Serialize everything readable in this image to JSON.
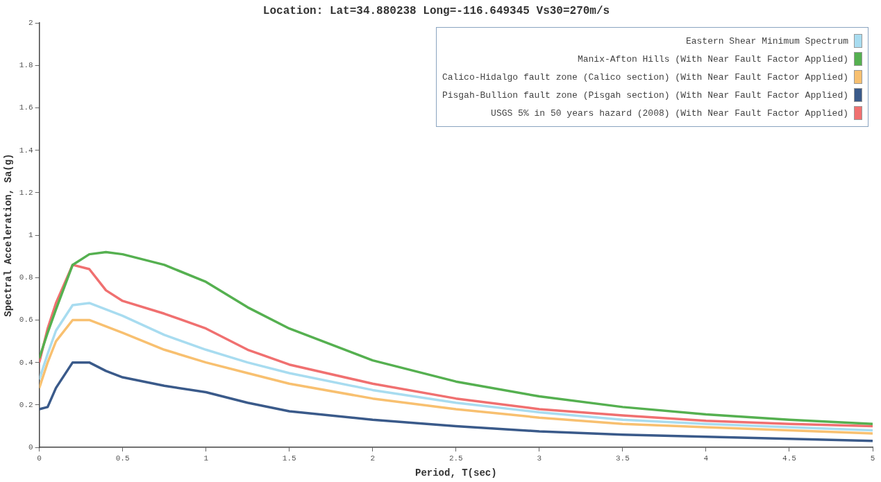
{
  "chart_data": {
    "type": "line",
    "title": "Location: Lat=34.880238 Long=-116.649345 Vs30=270m/s",
    "xlabel": "Period, T(sec)",
    "ylabel": "Spectral Acceleration, Sa(g)",
    "x": [
      0,
      0.05,
      0.1,
      0.2,
      0.3,
      0.4,
      0.5,
      0.75,
      1.0,
      1.25,
      1.5,
      2,
      2.5,
      3,
      3.5,
      4,
      4.5,
      5
    ],
    "series": [
      {
        "name": "Eastern Shear Minimum Spectrum",
        "color": "#a8dcf0",
        "values": [
          0.32,
          0.44,
          0.55,
          0.67,
          0.68,
          0.65,
          0.62,
          0.53,
          0.46,
          0.4,
          0.35,
          0.27,
          0.21,
          0.165,
          0.13,
          0.11,
          0.095,
          0.08
        ]
      },
      {
        "name": "Manix-Afton Hills (With Near Fault Factor Applied)",
        "color": "#55b050",
        "values": [
          0.42,
          0.54,
          0.65,
          0.86,
          0.91,
          0.92,
          0.91,
          0.86,
          0.78,
          0.66,
          0.56,
          0.41,
          0.31,
          0.24,
          0.19,
          0.155,
          0.13,
          0.11
        ]
      },
      {
        "name": "Calico-Hidalgo fault zone (Calico section) (With Near Fault Factor Applied)",
        "color": "#f8c070",
        "values": [
          0.28,
          0.4,
          0.5,
          0.6,
          0.6,
          0.57,
          0.54,
          0.46,
          0.4,
          0.35,
          0.3,
          0.23,
          0.18,
          0.14,
          0.11,
          0.095,
          0.08,
          0.065
        ]
      },
      {
        "name": "Pisgah-Bullion fault zone (Pisgah section) (With Near Fault Factor Applied)",
        "color": "#3a5a8a",
        "values": [
          0.18,
          0.19,
          0.28,
          0.4,
          0.4,
          0.36,
          0.33,
          0.29,
          0.26,
          0.21,
          0.17,
          0.13,
          0.1,
          0.075,
          0.06,
          0.05,
          0.04,
          0.03
        ]
      },
      {
        "name": "USGS 5% in 50 years hazard (2008) (With Near Fault Factor Applied)",
        "color": "#f07070",
        "values": [
          0.4,
          0.56,
          0.68,
          0.86,
          0.84,
          0.74,
          0.69,
          0.63,
          0.56,
          0.46,
          0.39,
          0.3,
          0.23,
          0.18,
          0.15,
          0.125,
          0.11,
          0.1
        ]
      }
    ],
    "xlim": [
      0,
      5
    ],
    "xticks": [
      0,
      0.5,
      1,
      1.5,
      2,
      2.5,
      3,
      3.5,
      4,
      4.5,
      5
    ],
    "ylim": [
      0,
      2
    ],
    "yticks": [
      0,
      0.2,
      0.4,
      0.6,
      0.8,
      1,
      1.2,
      1.4,
      1.6,
      1.8,
      2
    ],
    "grid": false,
    "legend": "top right",
    "marker": "none",
    "line_style": "solid"
  }
}
